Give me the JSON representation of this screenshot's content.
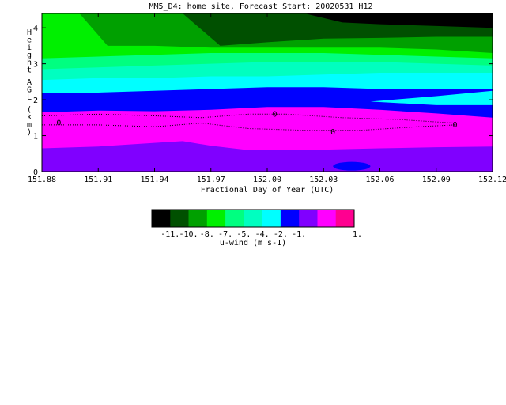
{
  "chart_data": {
    "type": "heatmap",
    "title": "MM5_D4: home site,  Forecast Start: 20020531 H12",
    "xlabel": "Fractional Day of Year (UTC)",
    "ylabel": "Height AGL (km)",
    "x_ticks": [
      "151.88",
      "151.91",
      "151.94",
      "151.97",
      "152.00",
      "152.03",
      "152.06",
      "152.09",
      "152.12"
    ],
    "y_ticks": [
      "0",
      "1",
      "2",
      "3",
      "4"
    ],
    "xlim": [
      151.88,
      152.12
    ],
    "ylim": [
      0,
      4.4
    ],
    "contour_labels": [
      "0",
      "0",
      "0",
      "0"
    ],
    "colorbar": {
      "label": "u-wind (m s-1)",
      "tick_labels": [
        "-11.",
        "-10.",
        "-8.",
        "-7.",
        "-5.",
        "-4.",
        "-2.",
        "-1.",
        "1."
      ],
      "colors": [
        "#000000",
        "#005000",
        "#00a000",
        "#00f000",
        "#00ff80",
        "#00ffc0",
        "#00ffff",
        "#0000ff",
        "#8000ff",
        "#ff00ff",
        "#ff0090"
      ]
    },
    "bands": [
      {
        "name": "-2 to -1",
        "color": "#8000ff",
        "heights": [
          [
            151.88,
            0.65
          ],
          [
            151.91,
            0.7
          ],
          [
            151.94,
            0.8
          ],
          [
            151.955,
            0.85
          ],
          [
            151.97,
            0.72
          ],
          [
            151.99,
            0.6
          ],
          [
            152.02,
            0.6
          ],
          [
            152.06,
            0.65
          ],
          [
            152.09,
            0.68
          ],
          [
            152.12,
            0.7
          ]
        ]
      },
      {
        "name": "-1 to 1",
        "color": "#ff00ff",
        "heights": [
          [
            151.88,
            1.65
          ],
          [
            151.91,
            1.7
          ],
          [
            151.94,
            1.68
          ],
          [
            151.97,
            1.72
          ],
          [
            152.0,
            1.8
          ],
          [
            152.03,
            1.8
          ],
          [
            152.06,
            1.72
          ],
          [
            152.09,
            1.62
          ],
          [
            152.12,
            1.5
          ]
        ]
      },
      {
        "name": "-4 to -2",
        "color": "#0000ff",
        "heights": [
          [
            151.88,
            2.2
          ],
          [
            151.91,
            2.2
          ],
          [
            151.94,
            2.25
          ],
          [
            151.97,
            2.3
          ],
          [
            152.0,
            2.35
          ],
          [
            152.03,
            2.35
          ],
          [
            152.06,
            2.3
          ],
          [
            152.09,
            2.3
          ],
          [
            152.12,
            2.3
          ]
        ]
      },
      {
        "name": "-5 to -4",
        "color": "#00ffff",
        "heights": [
          [
            151.88,
            2.55
          ],
          [
            151.91,
            2.6
          ],
          [
            151.94,
            2.6
          ],
          [
            151.97,
            2.65
          ],
          [
            152.0,
            2.65
          ],
          [
            152.03,
            2.7
          ],
          [
            152.06,
            2.75
          ],
          [
            152.09,
            2.75
          ],
          [
            152.12,
            2.75
          ]
        ]
      },
      {
        "name": "-7 to -5",
        "color": "#00ffc0",
        "heights": [
          [
            151.88,
            2.85
          ],
          [
            151.91,
            2.9
          ],
          [
            151.94,
            2.95
          ],
          [
            151.97,
            3.0
          ],
          [
            152.0,
            3.05
          ],
          [
            152.03,
            3.05
          ],
          [
            152.06,
            3.05
          ],
          [
            152.09,
            3.0
          ],
          [
            152.12,
            2.95
          ]
        ]
      },
      {
        "name": "-8 to -7",
        "color": "#00ff80",
        "heights": [
          [
            151.88,
            3.15
          ],
          [
            151.91,
            3.2
          ],
          [
            151.94,
            3.25
          ],
          [
            151.97,
            3.3
          ],
          [
            152.0,
            3.3
          ],
          [
            152.03,
            3.3
          ],
          [
            152.06,
            3.25
          ],
          [
            152.09,
            3.2
          ],
          [
            152.12,
            3.15
          ]
        ]
      },
      {
        "name": "-10 to -8",
        "color": "#00f000",
        "heights": [
          [
            151.88,
            4.4
          ],
          [
            151.9,
            4.4
          ],
          [
            151.915,
            3.5
          ],
          [
            151.94,
            3.5
          ],
          [
            151.97,
            3.45
          ],
          [
            152.0,
            3.45
          ],
          [
            152.03,
            3.45
          ],
          [
            152.06,
            3.45
          ],
          [
            152.09,
            3.4
          ],
          [
            152.12,
            3.3
          ]
        ]
      },
      {
        "name": "-11 to -10",
        "color": "#00a000",
        "heights": [
          [
            151.88,
            4.4
          ],
          [
            151.94,
            4.4
          ],
          [
            151.955,
            4.4
          ],
          [
            151.975,
            3.5
          ],
          [
            152.0,
            3.6
          ],
          [
            152.03,
            3.7
          ],
          [
            152.06,
            3.72
          ],
          [
            152.09,
            3.75
          ],
          [
            152.12,
            3.75
          ]
        ]
      },
      {
        "name": "< -11",
        "color": "#005000",
        "heights": [
          [
            151.88,
            4.4
          ],
          [
            152.02,
            4.4
          ],
          [
            152.04,
            4.15
          ],
          [
            152.06,
            4.1
          ],
          [
            152.09,
            4.05
          ],
          [
            152.12,
            4.0
          ]
        ]
      }
    ],
    "cyan_wedge": {
      "color": "#00ffff",
      "points": [
        [
          152.055,
          1.95
        ],
        [
          152.09,
          2.1
        ],
        [
          152.12,
          2.25
        ],
        [
          152.12,
          1.85
        ],
        [
          152.09,
          1.85
        ]
      ]
    },
    "blue_patch": {
      "color": "#0000ff",
      "center": [
        152.045,
        0.15
      ],
      "rx": 0.01,
      "ry": 0.12
    }
  }
}
